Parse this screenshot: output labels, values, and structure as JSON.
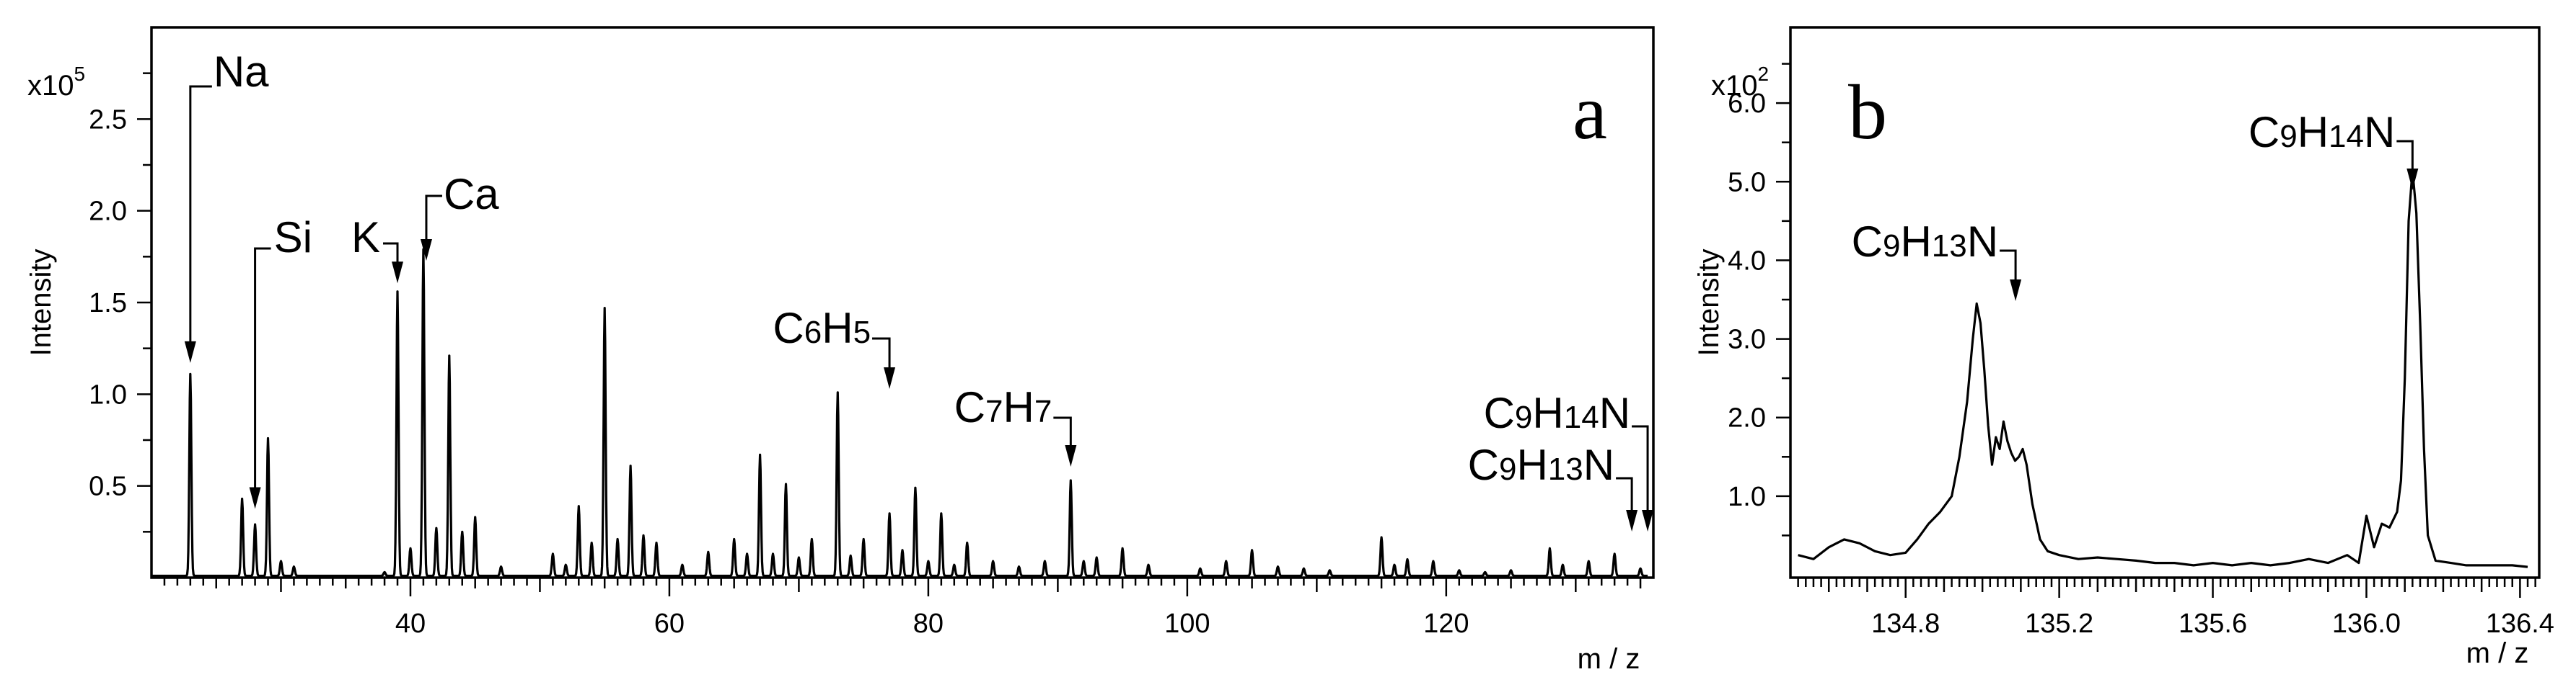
{
  "chart_data": [
    {
      "type": "line",
      "panel_label": "a",
      "xlabel": "m / z",
      "ylabel": "Intensity",
      "y_multiplier": {
        "base": "x10",
        "exp": "5"
      },
      "x_ticks": [
        "40",
        "60",
        "80",
        "100",
        "120"
      ],
      "y_ticks": [
        "0.5",
        "1.0",
        "1.5",
        "2.0",
        "2.5"
      ],
      "xlim": [
        20,
        136
      ],
      "ylim": [
        0,
        3.0
      ],
      "peaks": [
        [
          23,
          1.1
        ],
        [
          27,
          0.42
        ],
        [
          28,
          0.28
        ],
        [
          29,
          0.75
        ],
        [
          30,
          0.08
        ],
        [
          31,
          0.05
        ],
        [
          38,
          0.02
        ],
        [
          39,
          1.55
        ],
        [
          40,
          0.15
        ],
        [
          41,
          1.78
        ],
        [
          42,
          0.26
        ],
        [
          43,
          1.2
        ],
        [
          44,
          0.24
        ],
        [
          45,
          0.32
        ],
        [
          47,
          0.05
        ],
        [
          51,
          0.12
        ],
        [
          52,
          0.06
        ],
        [
          53,
          0.38
        ],
        [
          54,
          0.18
        ],
        [
          55,
          1.46
        ],
        [
          56,
          0.2
        ],
        [
          57,
          0.6
        ],
        [
          58,
          0.22
        ],
        [
          59,
          0.18
        ],
        [
          61,
          0.06
        ],
        [
          63,
          0.13
        ],
        [
          65,
          0.2
        ],
        [
          66,
          0.12
        ],
        [
          67,
          0.66
        ],
        [
          68,
          0.12
        ],
        [
          69,
          0.5
        ],
        [
          70,
          0.1
        ],
        [
          71,
          0.2
        ],
        [
          73,
          1.0
        ],
        [
          74,
          0.11
        ],
        [
          75,
          0.2
        ],
        [
          77,
          0.34
        ],
        [
          78,
          0.14
        ],
        [
          79,
          0.48
        ],
        [
          80,
          0.08
        ],
        [
          81,
          0.34
        ],
        [
          82,
          0.06
        ],
        [
          83,
          0.18
        ],
        [
          85,
          0.08
        ],
        [
          87,
          0.05
        ],
        [
          89,
          0.08
        ],
        [
          91,
          0.52
        ],
        [
          92,
          0.08
        ],
        [
          93,
          0.1
        ],
        [
          95,
          0.15
        ],
        [
          97,
          0.06
        ],
        [
          101,
          0.04
        ],
        [
          103,
          0.08
        ],
        [
          105,
          0.14
        ],
        [
          107,
          0.05
        ],
        [
          109,
          0.04
        ],
        [
          111,
          0.03
        ],
        [
          115,
          0.21
        ],
        [
          116,
          0.06
        ],
        [
          117,
          0.09
        ],
        [
          119,
          0.08
        ],
        [
          121,
          0.03
        ],
        [
          123,
          0.02
        ],
        [
          125,
          0.03
        ],
        [
          128,
          0.15
        ],
        [
          129,
          0.06
        ],
        [
          131,
          0.08
        ],
        [
          133,
          0.12
        ],
        [
          135,
          0.04
        ]
      ],
      "annotations": [
        {
          "sub": [
            "Na"
          ],
          "x": 23
        },
        {
          "sub": [
            "Si"
          ],
          "x": 28
        },
        {
          "sub": [
            "K"
          ],
          "x": 39
        },
        {
          "sub": [
            "Ca"
          ],
          "x": 40
        },
        {
          "sub": [
            "C",
            "6",
            "H",
            "5"
          ],
          "x": 77
        },
        {
          "sub": [
            "C",
            "7",
            "H",
            "7"
          ],
          "x": 91
        },
        {
          "sub": [
            "C",
            "9",
            "H",
            "14",
            "N"
          ],
          "x": 135
        },
        {
          "sub": [
            "C",
            "9",
            "H",
            "13",
            "N"
          ],
          "x": 134
        }
      ]
    },
    {
      "type": "line",
      "panel_label": "b",
      "xlabel": "m / z",
      "ylabel": "Intensity",
      "y_multiplier": {
        "base": "x10",
        "exp": "2"
      },
      "x_ticks": [
        "134.8",
        "135.2",
        "135.6",
        "136.0",
        "136.4"
      ],
      "y_ticks": [
        "1.0",
        "2.0",
        "3.0",
        "4.0",
        "5.0",
        "6.0"
      ],
      "xlim": [
        134.5,
        136.45
      ],
      "ylim": [
        0,
        7.0
      ],
      "x": [
        134.52,
        134.56,
        134.6,
        134.64,
        134.68,
        134.72,
        134.76,
        134.8,
        134.83,
        134.86,
        134.89,
        134.92,
        134.94,
        134.96,
        134.975,
        134.985,
        134.995,
        135.005,
        135.015,
        135.025,
        135.035,
        135.045,
        135.055,
        135.065,
        135.075,
        135.085,
        135.095,
        135.105,
        135.115,
        135.13,
        135.15,
        135.17,
        135.2,
        135.25,
        135.3,
        135.35,
        135.4,
        135.45,
        135.5,
        135.55,
        135.6,
        135.65,
        135.7,
        135.75,
        135.8,
        135.85,
        135.9,
        135.95,
        135.98,
        136.0,
        136.02,
        136.04,
        136.06,
        136.08,
        136.09,
        136.1,
        136.11,
        136.12,
        136.13,
        136.14,
        136.15,
        136.16,
        136.18,
        136.22,
        136.26,
        136.3,
        136.34,
        136.38,
        136.42
      ],
      "y": [
        0.25,
        0.2,
        0.35,
        0.45,
        0.4,
        0.3,
        0.25,
        0.28,
        0.45,
        0.65,
        0.8,
        1.0,
        1.5,
        2.2,
        3.0,
        3.45,
        3.2,
        2.6,
        1.9,
        1.4,
        1.75,
        1.6,
        1.95,
        1.7,
        1.55,
        1.45,
        1.5,
        1.6,
        1.4,
        0.9,
        0.45,
        0.3,
        0.25,
        0.2,
        0.22,
        0.2,
        0.18,
        0.15,
        0.15,
        0.12,
        0.15,
        0.12,
        0.15,
        0.12,
        0.15,
        0.2,
        0.15,
        0.25,
        0.15,
        0.75,
        0.35,
        0.65,
        0.6,
        0.8,
        1.2,
        2.5,
        4.5,
        5.15,
        4.6,
        3.2,
        1.6,
        0.5,
        0.18,
        0.15,
        0.12,
        0.12,
        0.12,
        0.12,
        0.1
      ],
      "annotations": [
        {
          "sub": [
            "C",
            "9",
            "H",
            "13",
            "N"
          ],
          "x": 135.06
        },
        {
          "sub": [
            "C",
            "9",
            "H",
            "14",
            "N"
          ],
          "x": 136.12
        }
      ]
    }
  ]
}
